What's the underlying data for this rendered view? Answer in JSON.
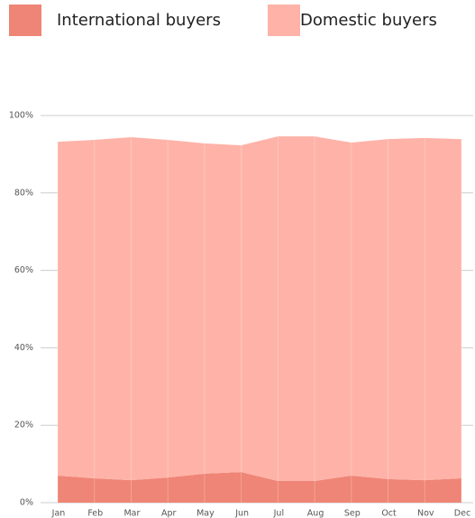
{
  "chart_data": {
    "type": "stacked_area",
    "categories": [
      "Jan",
      "Feb",
      "Mar",
      "Apr",
      "May",
      "Jun",
      "Jul",
      "Aug",
      "Sep",
      "Oct",
      "Nov",
      "Dec"
    ],
    "series": [
      {
        "name": "International buyers",
        "color": "#ef8576",
        "values": [
          7.0,
          6.3,
          5.8,
          6.5,
          7.5,
          7.9,
          5.6,
          5.6,
          7.0,
          6.1,
          5.8,
          6.3
        ]
      },
      {
        "name": "Domestic buyers",
        "color": "#ffb3a8",
        "values": [
          86.2,
          87.4,
          88.6,
          87.2,
          85.3,
          84.4,
          89.0,
          89.0,
          86.0,
          87.8,
          88.4,
          87.6
        ]
      }
    ],
    "ylim": [
      0,
      100
    ],
    "yticks": [
      {
        "value": 0,
        "label": "0%"
      },
      {
        "value": 20,
        "label": "20%"
      },
      {
        "value": 40,
        "label": "40%"
      },
      {
        "value": 60,
        "label": "60%"
      },
      {
        "value": 80,
        "label": "80%"
      },
      {
        "value": 100,
        "label": "100%"
      }
    ],
    "grid": true
  }
}
